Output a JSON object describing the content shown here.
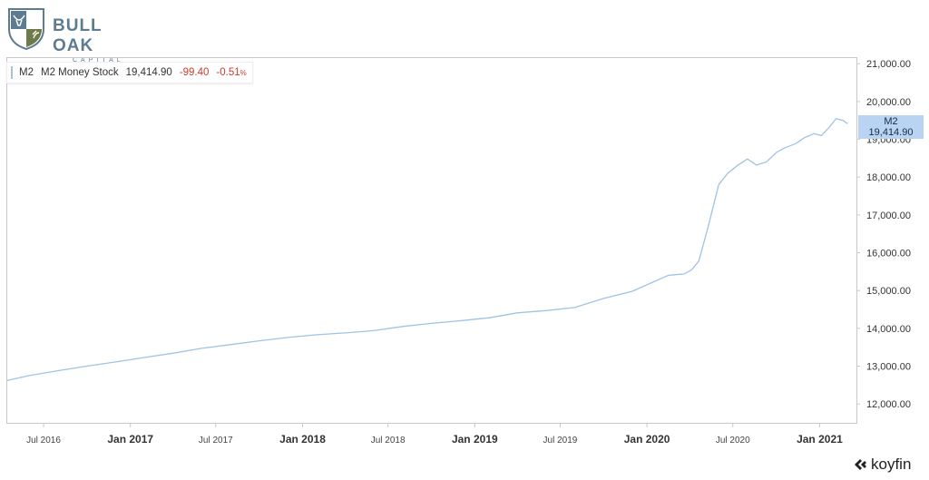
{
  "branding": {
    "logo_title": "BULL OAK",
    "logo_subtitle": "CAPITAL",
    "watermark": "koyfin",
    "colors": {
      "logo_blue": "#5d7c8f",
      "logo_green": "#6f7a4a"
    }
  },
  "legend": {
    "ticker": "M2",
    "name": "M2 Money Stock",
    "value": "19,414.90",
    "change": "-99.40",
    "change_pct": "-0.51",
    "pct_sign": "%"
  },
  "price_tag": {
    "ticker": "M2",
    "value": "19,414.90"
  },
  "colors": {
    "line": "#9fc3e6",
    "negative": "#d03a2b",
    "tag_bg": "#b9d4f3"
  },
  "chart_data": {
    "type": "line",
    "title": "",
    "xlabel": "",
    "ylabel": "",
    "ylim": [
      11500,
      21150
    ],
    "xlim": [
      "2016-04-15",
      "2021-03-20"
    ],
    "y_ticks": [
      12000,
      13000,
      14000,
      15000,
      16000,
      17000,
      18000,
      19000,
      20000,
      21000
    ],
    "y_tick_labels": [
      "12,000.00",
      "13,000.00",
      "14,000.00",
      "15,000.00",
      "16,000.00",
      "17,000.00",
      "18,000.00",
      "19,000.00",
      "20,000.00",
      "21,000.00"
    ],
    "x_ticks": [
      {
        "date": "2016-07-01",
        "label": "Jul 2016",
        "major": false
      },
      {
        "date": "2017-01-01",
        "label": "Jan 2017",
        "major": true
      },
      {
        "date": "2017-07-01",
        "label": "Jul 2017",
        "major": false
      },
      {
        "date": "2018-01-01",
        "label": "Jan 2018",
        "major": true
      },
      {
        "date": "2018-07-01",
        "label": "Jul 2018",
        "major": false
      },
      {
        "date": "2019-01-01",
        "label": "Jan 2019",
        "major": true
      },
      {
        "date": "2019-07-01",
        "label": "Jul 2019",
        "major": false
      },
      {
        "date": "2020-01-01",
        "label": "Jan 2020",
        "major": true
      },
      {
        "date": "2020-07-01",
        "label": "Jul 2020",
        "major": false
      },
      {
        "date": "2021-01-01",
        "label": "Jan 2021",
        "major": true
      }
    ],
    "grid": false,
    "legend_position": "top-left",
    "series": [
      {
        "name": "M2 Money Stock",
        "x": [
          "2016-04-15",
          "2016-06-01",
          "2016-08-01",
          "2016-10-01",
          "2016-12-01",
          "2017-02-01",
          "2017-04-01",
          "2017-06-01",
          "2017-08-01",
          "2017-10-01",
          "2017-12-01",
          "2018-02-01",
          "2018-04-01",
          "2018-06-01",
          "2018-08-01",
          "2018-10-01",
          "2018-12-01",
          "2019-02-01",
          "2019-04-01",
          "2019-06-01",
          "2019-08-01",
          "2019-10-01",
          "2019-12-01",
          "2020-01-15",
          "2020-02-15",
          "2020-03-01",
          "2020-03-20",
          "2020-04-05",
          "2020-04-20",
          "2020-05-10",
          "2020-06-01",
          "2020-06-20",
          "2020-07-10",
          "2020-08-01",
          "2020-08-20",
          "2020-09-10",
          "2020-10-01",
          "2020-10-20",
          "2020-11-10",
          "2020-12-01",
          "2020-12-20",
          "2021-01-05",
          "2021-01-20",
          "2021-02-05",
          "2021-02-20",
          "2021-03-01"
        ],
        "values": [
          12620,
          12750,
          12880,
          13000,
          13110,
          13230,
          13340,
          13470,
          13570,
          13670,
          13760,
          13830,
          13880,
          13940,
          14050,
          14130,
          14200,
          14280,
          14410,
          14470,
          14550,
          14790,
          14980,
          15230,
          15400,
          15420,
          15440,
          15550,
          15780,
          16700,
          17800,
          18100,
          18300,
          18480,
          18320,
          18400,
          18650,
          18780,
          18880,
          19050,
          19150,
          19100,
          19300,
          19550,
          19500,
          19415
        ]
      }
    ]
  }
}
